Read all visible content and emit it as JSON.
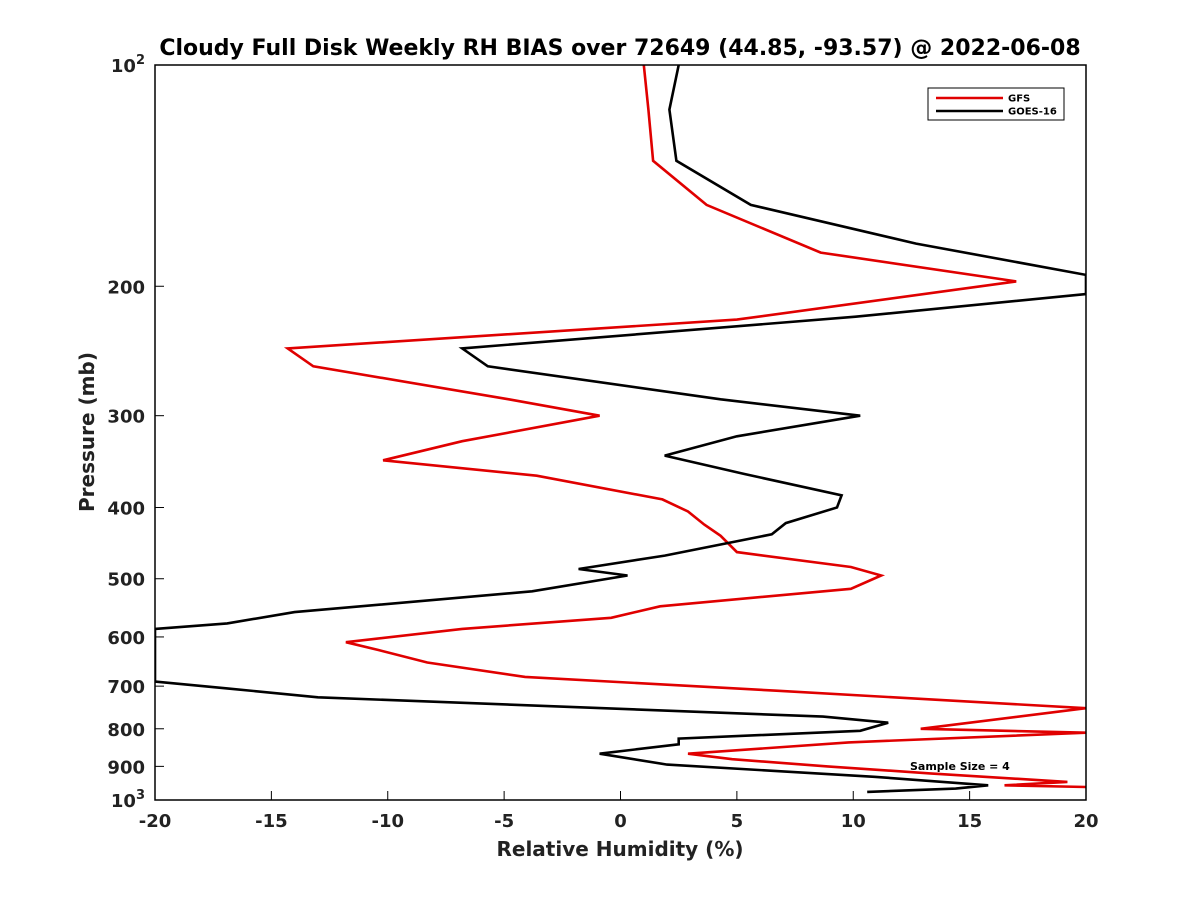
{
  "chart_data": {
    "type": "line",
    "title": "Cloudy Full Disk Weekly RH BIAS over 72649 (44.85, -93.57) @ 2022-06-08",
    "xlabel": "Relative Humidity (%)",
    "ylabel": "Pressure (mb)",
    "xlim": [
      -20,
      20
    ],
    "ylim": [
      100,
      1000
    ],
    "yscale": "log",
    "y_reversed": true,
    "grid": false,
    "legend_position": "top-right",
    "annotation": "Sample Size = 4",
    "x_ticks": [
      -20,
      -15,
      -10,
      -5,
      0,
      5,
      10,
      15,
      20
    ],
    "x_tick_labels": [
      "-20",
      "-15",
      "-10",
      "-5",
      "0",
      "5",
      "10",
      "15",
      "20"
    ],
    "y_ticks": [
      {
        "value": 100,
        "base": "10",
        "exp": "2"
      },
      {
        "value": 200,
        "label": "200"
      },
      {
        "value": 300,
        "label": "300"
      },
      {
        "value": 400,
        "label": "400"
      },
      {
        "value": 500,
        "label": "500"
      },
      {
        "value": 600,
        "label": "600"
      },
      {
        "value": 700,
        "label": "700"
      },
      {
        "value": 800,
        "label": "800"
      },
      {
        "value": 900,
        "label": "900"
      },
      {
        "value": 1000,
        "base": "10",
        "exp": "3"
      }
    ],
    "series": [
      {
        "name": "GFS",
        "color": "#e00000",
        "points": [
          [
            1.0,
            100
          ],
          [
            1.2,
            115
          ],
          [
            1.4,
            135
          ],
          [
            3.7,
            155
          ],
          [
            8.6,
            180
          ],
          [
            17.0,
            197
          ],
          [
            5.0,
            222
          ],
          [
            -14.3,
            243
          ],
          [
            -13.2,
            257
          ],
          [
            -4.8,
            285
          ],
          [
            -0.9,
            300
          ],
          [
            -6.8,
            325
          ],
          [
            -10.2,
            345
          ],
          [
            -3.6,
            362
          ],
          [
            1.8,
            390
          ],
          [
            2.9,
            405
          ],
          [
            3.6,
            422
          ],
          [
            4.3,
            437
          ],
          [
            5.0,
            460
          ],
          [
            9.9,
            482
          ],
          [
            11.2,
            495
          ],
          [
            9.9,
            516
          ],
          [
            1.7,
            545
          ],
          [
            -0.4,
            565
          ],
          [
            -6.8,
            585
          ],
          [
            -11.8,
            610
          ],
          [
            -10.4,
            625
          ],
          [
            -8.3,
            650
          ],
          [
            -4.1,
            680
          ],
          [
            6.7,
            710
          ],
          [
            20.0,
            750
          ],
          [
            12.9,
            800
          ],
          [
            20.0,
            810
          ],
          [
            9.8,
            835
          ],
          [
            2.9,
            865
          ],
          [
            4.8,
            880
          ],
          [
            8.9,
            900
          ],
          [
            13.3,
            920
          ],
          [
            19.2,
            945
          ],
          [
            16.5,
            955
          ],
          [
            20.0,
            960
          ]
        ]
      },
      {
        "name": "GOES-16",
        "color": "#000000",
        "points": [
          [
            2.5,
            100
          ],
          [
            2.1,
            115
          ],
          [
            2.4,
            135
          ],
          [
            5.6,
            155
          ],
          [
            12.7,
            175
          ],
          [
            20.0,
            193
          ],
          [
            20.0,
            205
          ],
          [
            10.1,
            220
          ],
          [
            -6.8,
            243
          ],
          [
            -5.7,
            257
          ],
          [
            4.3,
            285
          ],
          [
            10.3,
            300
          ],
          [
            5.0,
            320
          ],
          [
            1.9,
            340
          ],
          [
            5.3,
            360
          ],
          [
            9.5,
            385
          ],
          [
            9.3,
            400
          ],
          [
            7.1,
            420
          ],
          [
            6.5,
            435
          ],
          [
            1.9,
            465
          ],
          [
            -1.8,
            485
          ],
          [
            0.3,
            495
          ],
          [
            -3.8,
            520
          ],
          [
            -14.0,
            555
          ],
          [
            -16.9,
            575
          ],
          [
            -20.0,
            585
          ],
          [
            -20.0,
            690
          ],
          [
            -16.9,
            705
          ],
          [
            -13.0,
            725
          ],
          [
            8.7,
            770
          ],
          [
            11.5,
            785
          ],
          [
            10.3,
            805
          ],
          [
            2.5,
            825
          ],
          [
            2.5,
            840
          ],
          [
            -0.9,
            865
          ],
          [
            2.0,
            895
          ],
          [
            10.9,
            930
          ],
          [
            15.8,
            955
          ],
          [
            14.4,
            965
          ],
          [
            10.6,
            975
          ]
        ]
      }
    ]
  }
}
